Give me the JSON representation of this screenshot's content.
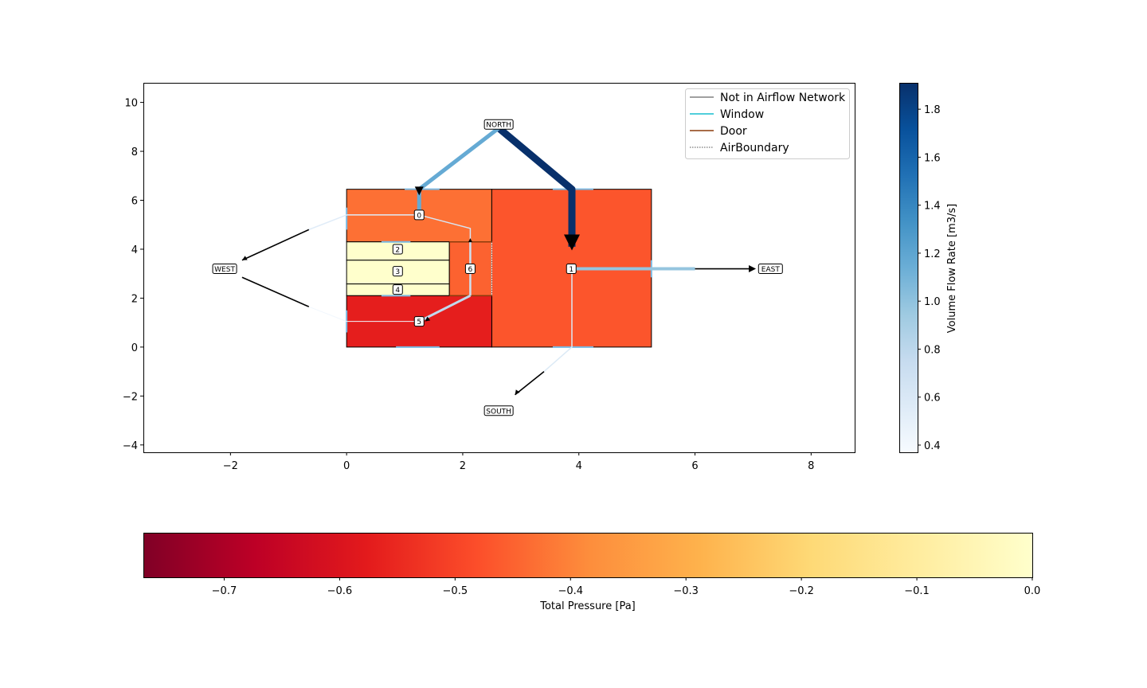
{
  "chart_data": [
    {
      "type": "floorplan-network",
      "xlim": [
        -3.5,
        8.75
      ],
      "ylim": [
        -4.3,
        10.8
      ],
      "x_ticks": [
        "−2",
        "0",
        "2",
        "4",
        "6",
        "8"
      ],
      "x_tick_values": [
        -2,
        0,
        2,
        4,
        6,
        8
      ],
      "y_ticks": [
        "−4",
        "−2",
        "0",
        "2",
        "4",
        "6",
        "8",
        "10"
      ],
      "y_tick_values": [
        -4,
        -2,
        0,
        2,
        4,
        6,
        8,
        10
      ],
      "zones": [
        {
          "label": "0",
          "x": 0,
          "y": 4.3,
          "w": 2.5,
          "h": 2.15,
          "pressure": -0.43,
          "label_x": 1.25,
          "label_y": 5.4
        },
        {
          "label": "1",
          "x": 2.5,
          "y": 0,
          "w": 2.75,
          "h": 6.45,
          "pressure": -0.47,
          "label_x": 3.87,
          "label_y": 3.2
        },
        {
          "label": "2",
          "x": 0,
          "y": 3.55,
          "w": 1.77,
          "h": 0.75,
          "pressure": 0.0,
          "label_x": 0.88,
          "label_y": 4.0
        },
        {
          "label": "3",
          "x": 0,
          "y": 2.58,
          "w": 1.77,
          "h": 0.97,
          "pressure": 0.0,
          "label_x": 0.88,
          "label_y": 3.1
        },
        {
          "label": "4",
          "x": 0,
          "y": 2.1,
          "w": 1.77,
          "h": 0.48,
          "pressure": 0.0,
          "label_x": 0.88,
          "label_y": 2.35
        },
        {
          "label": "5",
          "x": 0,
          "y": 0,
          "w": 2.5,
          "h": 2.1,
          "pressure": -0.57,
          "label_x": 1.25,
          "label_y": 1.05
        },
        {
          "label": "6",
          "x": 1.77,
          "y": 2.1,
          "w": 0.73,
          "h": 2.2,
          "pressure": -0.45,
          "label_x": 2.13,
          "label_y": 3.2
        }
      ],
      "outdoor_nodes": [
        {
          "label": "NORTH",
          "x": 2.62,
          "y": 9.1
        },
        {
          "label": "SOUTH",
          "x": 2.62,
          "y": -2.6
        },
        {
          "label": "WEST",
          "x": -2.1,
          "y": 3.2
        },
        {
          "label": "EAST",
          "x": 7.3,
          "y": 3.2
        }
      ],
      "legend": [
        "Not in Airflow Network",
        "Window",
        "Door",
        "AirBoundary"
      ],
      "legend_colors": [
        "#808080",
        "#17becf",
        "#8c3c0c",
        "#555555"
      ],
      "legend_placement": "top-right"
    },
    {
      "type": "colorbar",
      "label": "Volume Flow Rate [m3/s]",
      "orientation": "vertical",
      "range": [
        0.37,
        1.91
      ],
      "ticks": [
        "0.4",
        "0.6",
        "0.8",
        "1.0",
        "1.2",
        "1.4",
        "1.6",
        "1.8"
      ],
      "tick_values": [
        0.4,
        0.6,
        0.8,
        1.0,
        1.2,
        1.4,
        1.6,
        1.8
      ],
      "colormap_stops": [
        "#f7fbff",
        "#deebf7",
        "#c6dbef",
        "#9ecae1",
        "#6baed6",
        "#4292c6",
        "#2171b5",
        "#08519c",
        "#08306b"
      ]
    },
    {
      "type": "colorbar",
      "label": "Total Pressure [Pa]",
      "orientation": "horizontal",
      "range": [
        -0.77,
        0.0
      ],
      "ticks": [
        "−0.7",
        "−0.6",
        "−0.5",
        "−0.4",
        "−0.3",
        "−0.2",
        "−0.1",
        "0.0"
      ],
      "tick_values": [
        -0.7,
        -0.6,
        -0.5,
        -0.4,
        -0.3,
        -0.2,
        -0.1,
        0.0
      ],
      "colormap_stops": [
        "#800026",
        "#bd0026",
        "#e31a1c",
        "#fc4e2a",
        "#fd8d3c",
        "#feb24c",
        "#fed976",
        "#ffeda0",
        "#ffffcc"
      ]
    }
  ]
}
